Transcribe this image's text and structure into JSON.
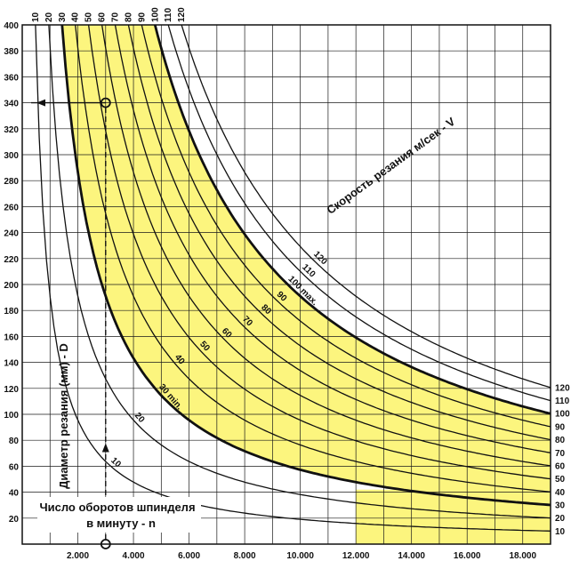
{
  "chart_data": {
    "type": "line",
    "xlabel": "Число оборотов шпинделя в минуту - n",
    "xlabel_lines": [
      "Число оборотов шпинделя",
      "в минуту - n"
    ],
    "ylabel": "Диаметр резания (мм) - D",
    "curves_label": "Скорость резания м/сек - V",
    "xlim": [
      0,
      19000
    ],
    "ylim": [
      0,
      400
    ],
    "grid": true,
    "x_ticks": [
      2000,
      4000,
      6000,
      8000,
      10000,
      12000,
      14000,
      16000,
      18000
    ],
    "x_tick_labels": [
      "2.000",
      "4.000",
      "6.000",
      "8.000",
      "10.000",
      "12.000",
      "14.000",
      "16.000",
      "18.000"
    ],
    "y_ticks": [
      20,
      40,
      60,
      80,
      100,
      120,
      140,
      160,
      180,
      200,
      220,
      240,
      260,
      280,
      300,
      320,
      340,
      360,
      380,
      400
    ],
    "y_tick_labels": [
      "20",
      "40",
      "60",
      "80",
      "100",
      "120",
      "140",
      "160",
      "180",
      "200",
      "220",
      "240",
      "260",
      "280",
      "300",
      "320",
      "340",
      "360",
      "380",
      "400"
    ],
    "speeds": [
      10,
      20,
      30,
      40,
      50,
      60,
      70,
      80,
      90,
      100,
      110,
      120
    ],
    "top_labels": [
      "10",
      "20",
      "30",
      "40",
      "50",
      "60",
      "70",
      "80",
      "90",
      "100",
      "110",
      "120"
    ],
    "right_labels": [
      "120",
      "110",
      "100",
      "90",
      "80",
      "70",
      "60",
      "50",
      "40",
      "30",
      "20",
      "10"
    ],
    "inline_labels": [
      {
        "speed": 10,
        "text": "10",
        "at_y": 62
      },
      {
        "speed": 20,
        "text": "20",
        "at_y": 97
      },
      {
        "speed": 30,
        "text": "30 min.",
        "at_y": 119
      },
      {
        "speed": 40,
        "text": "40",
        "at_y": 142
      },
      {
        "speed": 50,
        "text": "50",
        "at_y": 152
      },
      {
        "speed": 60,
        "text": "60",
        "at_y": 162
      },
      {
        "speed": 70,
        "text": "70",
        "at_y": 171
      },
      {
        "speed": 80,
        "text": "80",
        "at_y": 180
      },
      {
        "speed": 90,
        "text": "90",
        "at_y": 190
      },
      {
        "speed": 100,
        "text": "100 max.",
        "at_y": 202
      },
      {
        "speed": 110,
        "text": "110",
        "at_y": 211
      },
      {
        "speed": 120,
        "text": "120",
        "at_y": 221
      }
    ],
    "highlight_region": {
      "from_speed": 30,
      "to_speed": 100,
      "n_min": 12000,
      "d_min": 42,
      "color": "#fcf57e"
    },
    "example": {
      "n": 3000,
      "d": 340,
      "color": "#111111"
    }
  }
}
